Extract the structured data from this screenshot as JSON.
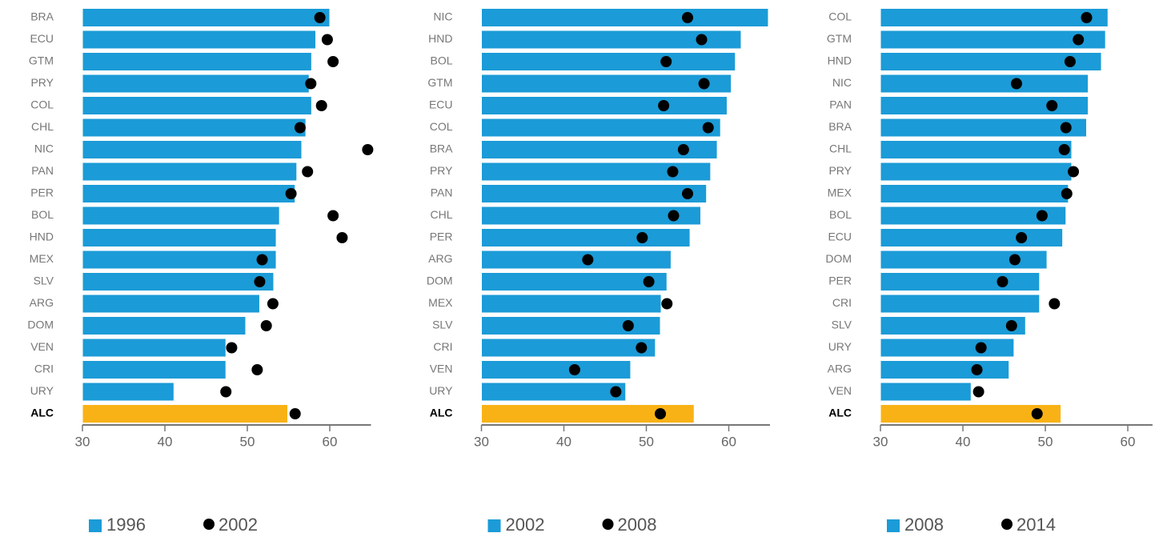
{
  "chart_data": [
    {
      "type": "bar",
      "orientation": "horizontal",
      "categories": [
        "BRA",
        "ECU",
        "GTM",
        "PRY",
        "COL",
        "CHL",
        "NIC",
        "PAN",
        "PER",
        "BOL",
        "HND",
        "MEX",
        "SLV",
        "ARG",
        "DOM",
        "VEN",
        "CRI",
        "URY",
        "ALC"
      ],
      "series": [
        {
          "name": "1996",
          "color": "#1b9bd7",
          "values": [
            60.0,
            58.3,
            57.8,
            57.5,
            57.8,
            57.1,
            56.6,
            56.0,
            55.8,
            53.9,
            53.5,
            53.5,
            53.2,
            51.5,
            49.8,
            47.4,
            47.4,
            41.1,
            54.9
          ]
        },
        {
          "name": "2002",
          "color": "#000000",
          "marker": "dot",
          "values": [
            58.8,
            59.7,
            60.4,
            57.7,
            59.0,
            56.4,
            64.6,
            57.3,
            55.3,
            60.4,
            61.5,
            51.8,
            51.5,
            53.1,
            52.3,
            48.1,
            51.2,
            47.4,
            55.8
          ]
        }
      ],
      "highlight": {
        "category": "ALC",
        "color": "#f9b216"
      },
      "xlim": [
        30,
        65
      ],
      "xticks": [
        30,
        40,
        50,
        60
      ]
    },
    {
      "type": "bar",
      "orientation": "horizontal",
      "categories": [
        "NIC",
        "HND",
        "BOL",
        "GTM",
        "ECU",
        "COL",
        "BRA",
        "PRY",
        "PAN",
        "CHL",
        "PER",
        "ARG",
        "DOM",
        "MEX",
        "SLV",
        "CRI",
        "VEN",
        "URY",
        "ALC"
      ],
      "series": [
        {
          "name": "2002",
          "color": "#1b9bd7",
          "values": [
            64.8,
            61.5,
            60.8,
            60.3,
            59.8,
            59.0,
            58.6,
            57.8,
            57.3,
            56.6,
            55.3,
            53.0,
            52.5,
            51.8,
            51.7,
            51.1,
            48.1,
            47.5,
            55.8
          ]
        },
        {
          "name": "2008",
          "color": "#000000",
          "marker": "dot",
          "values": [
            55.0,
            56.7,
            52.4,
            57.0,
            52.1,
            57.5,
            54.5,
            53.2,
            55.0,
            53.3,
            49.5,
            42.9,
            50.3,
            52.5,
            47.8,
            49.4,
            41.3,
            46.3,
            51.7
          ]
        }
      ],
      "highlight": {
        "category": "ALC",
        "color": "#f9b216"
      },
      "xlim": [
        30,
        65
      ],
      "xticks": [
        30,
        40,
        50,
        60
      ]
    },
    {
      "type": "bar",
      "orientation": "horizontal",
      "categories": [
        "COL",
        "GTM",
        "HND",
        "NIC",
        "PAN",
        "BRA",
        "CHL",
        "PRY",
        "MEX",
        "BOL",
        "ECU",
        "DOM",
        "PER",
        "CRI",
        "SLV",
        "URY",
        "ARG",
        "VEN",
        "ALC"
      ],
      "series": [
        {
          "name": "2008",
          "color": "#1b9bd7",
          "values": [
            57.6,
            57.3,
            56.8,
            55.2,
            55.2,
            55.0,
            53.2,
            53.2,
            52.8,
            52.5,
            52.1,
            50.2,
            49.3,
            49.3,
            47.6,
            46.2,
            45.6,
            41.0,
            51.9
          ]
        },
        {
          "name": "2014",
          "color": "#000000",
          "marker": "dot",
          "values": [
            55.0,
            54.0,
            53.0,
            46.5,
            50.8,
            52.5,
            52.3,
            53.4,
            52.6,
            49.6,
            47.1,
            46.3,
            44.8,
            51.1,
            45.9,
            42.2,
            41.7,
            41.9,
            49.0
          ]
        }
      ],
      "highlight": {
        "category": "ALC",
        "color": "#f9b216"
      },
      "xlim": [
        30,
        63
      ],
      "xticks": [
        30,
        40,
        50,
        60
      ]
    }
  ]
}
